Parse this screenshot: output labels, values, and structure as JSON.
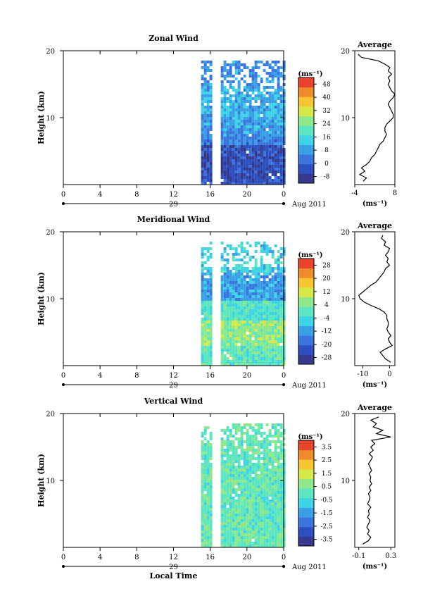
{
  "chart_data": [
    {
      "type": "heatmap",
      "title": "Zonal Wind",
      "ylabel": "Height (km)",
      "ylim": [
        0,
        20
      ],
      "yticks": [
        "20",
        "10"
      ],
      "xlim": [
        0,
        24
      ],
      "xticks": [
        "0",
        "4",
        "8",
        "12",
        "16",
        "20",
        "0"
      ],
      "date_row": [
        "29",
        "Aug 2011"
      ],
      "colorbar": {
        "unit": "(ms⁻¹)",
        "ticks": [
          "48",
          "40",
          "32",
          "24",
          "16",
          "8",
          "0",
          "-8"
        ],
        "range": [
          -12,
          52
        ]
      },
      "data_start_hour": 15,
      "gap_hours": [
        16.1,
        16.9
      ],
      "profile": {
        "title": "Average",
        "xticks": [
          "-4",
          "8"
        ],
        "xlim": [
          -4,
          8
        ],
        "xunit": "(ms⁻¹)",
        "yticks": [
          "20",
          "10"
        ],
        "heights": [
          0.5,
          1,
          1.5,
          2,
          2.5,
          3,
          3.5,
          4,
          4.5,
          5,
          5.5,
          6,
          6.5,
          7,
          7.5,
          8,
          8.5,
          9,
          9.5,
          10,
          10.5,
          11,
          11.5,
          12,
          12.5,
          13,
          13.5,
          14,
          14.5,
          15,
          15.5,
          16,
          16.5,
          17,
          17.5,
          18,
          18.5,
          19,
          19.5
        ],
        "values": [
          -1.5,
          -0.5,
          -2.5,
          -1,
          -2,
          -0.5,
          0.5,
          1,
          2,
          2.5,
          3,
          3.5,
          4.5,
          5,
          5.5,
          5,
          5,
          5.5,
          6.5,
          7.5,
          7.5,
          7,
          6.5,
          6,
          6.5,
          7.5,
          8,
          7,
          6.5,
          6,
          6.5,
          6,
          7,
          6,
          6.5,
          5,
          3,
          -2,
          -3
        ]
      }
    },
    {
      "type": "heatmap",
      "title": "Meridional Wind",
      "ylabel": "Height (km)",
      "ylim": [
        0,
        20
      ],
      "yticks": [
        "20",
        "10"
      ],
      "xlim": [
        0,
        24
      ],
      "xticks": [
        "0",
        "4",
        "8",
        "12",
        "16",
        "20",
        "0"
      ],
      "date_row": [
        "29",
        "Aug 2011"
      ],
      "colorbar": {
        "unit": "(ms⁻¹)",
        "ticks": [
          "28",
          "20",
          "12",
          "4",
          "-4",
          "-12",
          "-20",
          "-28"
        ],
        "range": [
          -32,
          32
        ]
      },
      "data_start_hour": 15,
      "gap_hours": [
        16.1,
        16.9
      ],
      "profile": {
        "title": "Average",
        "xticks": [
          "-10",
          "0"
        ],
        "xlim": [
          -13,
          2
        ],
        "xunit": "(ms⁻¹)",
        "yticks": [
          "20",
          "10"
        ],
        "heights": [
          0.5,
          1,
          1.5,
          2,
          2.5,
          3,
          3.5,
          4,
          4.5,
          5,
          5.5,
          6,
          6.5,
          7,
          7.5,
          8,
          8.5,
          9,
          9.5,
          10,
          10.5,
          11,
          11.5,
          12,
          12.5,
          13,
          13.5,
          14,
          14.5,
          15,
          15.5,
          16,
          16.5,
          17,
          17.5,
          18,
          18.5,
          19,
          19.5
        ],
        "values": [
          0.5,
          -1.5,
          -2.5,
          -3.5,
          -1.5,
          1,
          0,
          -0.5,
          0.5,
          -0.5,
          -1,
          -0.5,
          -0.5,
          -1,
          -1,
          -2,
          -4,
          -7,
          -9.5,
          -11,
          -11.5,
          -10,
          -8.5,
          -7,
          -5,
          -4,
          -3,
          -2,
          -1.5,
          0,
          -1,
          -0.5,
          -1.5,
          -0.5,
          0,
          -2,
          -1.5,
          -3,
          -2.5
        ]
      }
    },
    {
      "type": "heatmap",
      "title": "Vertical Wind",
      "ylabel": "Height (km)",
      "ylim": [
        0,
        20
      ],
      "yticks": [
        "20",
        "10"
      ],
      "xlim": [
        0,
        24
      ],
      "xticks": [
        "0",
        "4",
        "8",
        "12",
        "16",
        "20",
        "0"
      ],
      "date_row": [
        "29",
        "Aug 2011"
      ],
      "xlabel": "Local Time",
      "colorbar": {
        "unit": "(ms⁻¹)",
        "ticks": [
          "3.5",
          "2.5",
          "1.5",
          "0.5",
          "-0.5",
          "-1.5",
          "-2.5",
          "-3.5"
        ],
        "range": [
          -4,
          4
        ]
      },
      "data_start_hour": 15,
      "gap_hours": [
        16.1,
        16.9
      ],
      "profile": {
        "title": "Average",
        "xticks": [
          "-0.1",
          "0.3"
        ],
        "xlim": [
          -0.15,
          0.35
        ],
        "xunit": "(ms⁻¹)",
        "yticks": [
          "20",
          "10"
        ],
        "heights": [
          0.5,
          1,
          1.5,
          2,
          2.5,
          3,
          3.5,
          4,
          4.5,
          5,
          5.5,
          6,
          6.5,
          7,
          7.5,
          8,
          8.5,
          9,
          9.5,
          10,
          10.5,
          11,
          11.5,
          12,
          12.5,
          13,
          13.5,
          14,
          14.5,
          15,
          15.5,
          16,
          16.5,
          17,
          17.5,
          18,
          18.5,
          19,
          19.5
        ],
        "values": [
          -0.05,
          0.02,
          0.05,
          0.01,
          0.03,
          0.0,
          0.02,
          0.04,
          0.01,
          0.03,
          0.02,
          0.05,
          0.01,
          0.03,
          0.04,
          0.02,
          0.05,
          0.03,
          0.06,
          0.04,
          0.05,
          0.03,
          0.06,
          0.04,
          0.02,
          0.05,
          0.07,
          0.03,
          0.08,
          0.05,
          0.1,
          0.06,
          0.3,
          0.12,
          0.2,
          0.08,
          0.12,
          0.05,
          0.15
        ]
      }
    }
  ],
  "colors": {
    "scale": [
      "#353a8e",
      "#2d4fbf",
      "#3b74df",
      "#3aa0e6",
      "#3fd3e6",
      "#5ce6c0",
      "#8ee88a",
      "#d4e84a",
      "#f7c531",
      "#f08b2c",
      "#e8442c"
    ]
  }
}
